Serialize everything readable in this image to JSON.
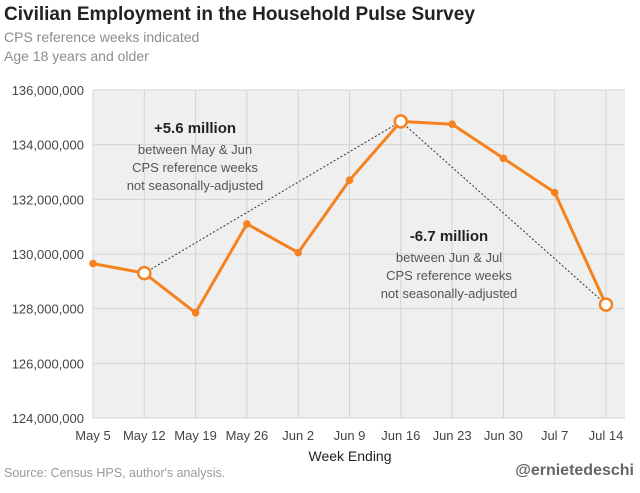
{
  "title": "Civilian Employment in the Household Pulse Survey",
  "subtitle_lines": [
    "CPS reference weeks indicated",
    "Age 18 years and older"
  ],
  "source": "Source: Census HPS, author's analysis.",
  "handle": "@ernietedeschi",
  "colors": {
    "line": "#f5821f",
    "plot_bg": "#efefef",
    "grid": "#d4d4d4",
    "text": "#444444"
  },
  "chart_data": {
    "type": "line",
    "title": "Civilian Employment in the Household Pulse Survey",
    "xlabel": "Week Ending",
    "ylabel": "",
    "categories": [
      "May 5",
      "May 12",
      "May 19",
      "May 26",
      "Jun 2",
      "Jun 9",
      "Jun 16",
      "Jun 23",
      "Jun 30",
      "Jul 7",
      "Jul 14"
    ],
    "series": [
      {
        "name": "Civilian Employment",
        "values": [
          129650000,
          129300000,
          127850000,
          131100000,
          130050000,
          132700000,
          134850000,
          134750000,
          133500000,
          132250000,
          128150000
        ]
      }
    ],
    "highlighted_indices": [
      1,
      6,
      10
    ],
    "ylim": [
      124000000,
      136000000
    ],
    "yticks": [
      124000000,
      126000000,
      128000000,
      130000000,
      132000000,
      134000000,
      136000000
    ],
    "ytick_labels": [
      "124,000,000",
      "126,000,000",
      "128,000,000",
      "130,000,000",
      "132,000,000",
      "134,000,000",
      "136,000,000"
    ],
    "grid": true,
    "annotations": [
      {
        "headline": "+5.6 million",
        "lines": [
          "between May & Jun",
          "CPS reference weeks",
          "not seasonally-adjusted"
        ],
        "from": 1,
        "to": 6
      },
      {
        "headline": "-6.7 million",
        "lines": [
          "between Jun & Jul",
          "CPS reference weeks",
          "not seasonally-adjusted"
        ],
        "from": 6,
        "to": 10
      }
    ]
  }
}
